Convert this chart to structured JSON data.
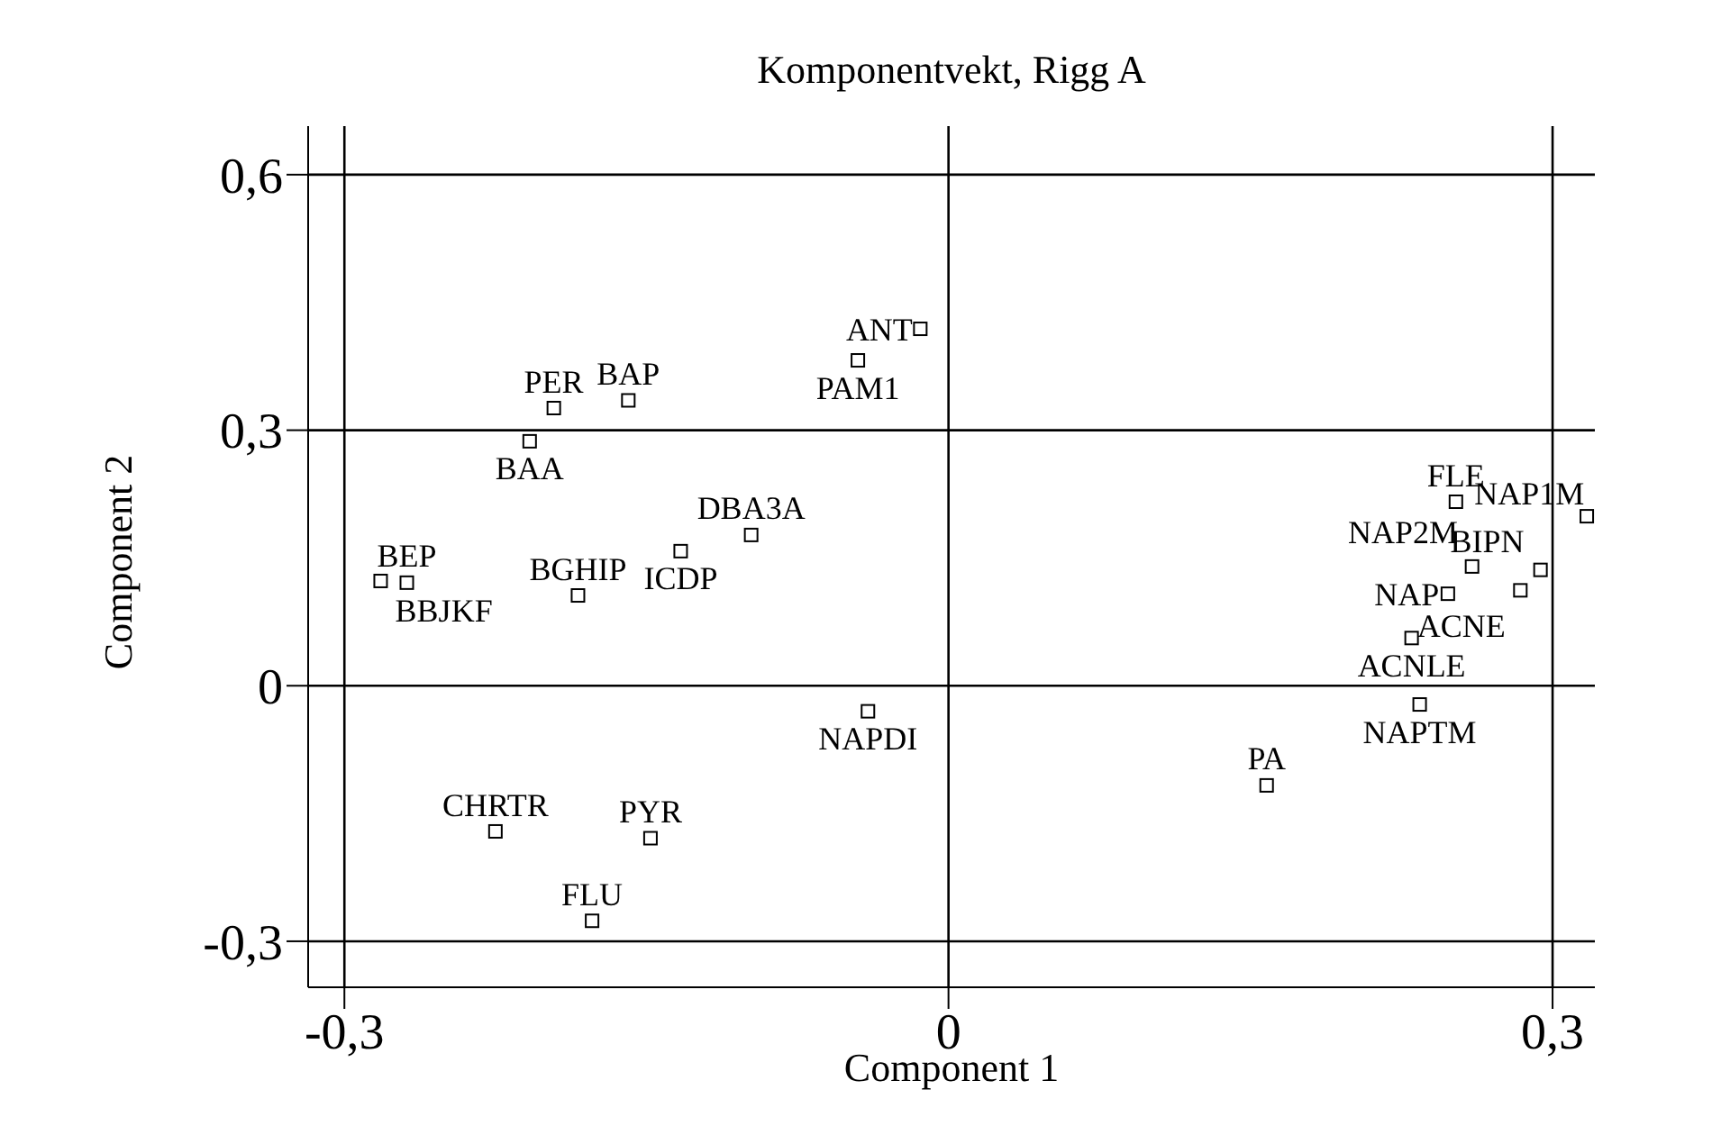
{
  "chart_data": {
    "type": "scatter",
    "title": "Komponentvekt, Rigg A",
    "xlabel": "Component 1",
    "ylabel": "Component 2",
    "x": [
      -0.014,
      -0.045,
      -0.159,
      -0.196,
      -0.208,
      -0.098,
      -0.133,
      -0.184,
      -0.269,
      -0.282,
      -0.04,
      -0.225,
      -0.148,
      -0.177,
      0.158,
      0.234,
      0.23,
      0.248,
      0.284,
      0.294,
      0.26,
      0.252,
      0.317
    ],
    "series": [
      {
        "color": "#000000",
        "values": [
          0.419,
          0.382,
          0.335,
          0.326,
          0.287,
          0.177,
          0.158,
          0.106,
          0.121,
          0.123,
          -0.03,
          -0.171,
          -0.179,
          -0.276,
          -0.117,
          -0.022,
          0.056,
          0.108,
          0.112,
          0.136,
          0.14,
          0.216,
          0.199
        ]
      }
    ],
    "annotations": [
      {
        "text": "ANT",
        "x": -0.014,
        "y": 0.419
      },
      {
        "text": "PAM1",
        "x": -0.045,
        "y": 0.382
      },
      {
        "text": "BAP",
        "x": -0.159,
        "y": 0.335
      },
      {
        "text": "PER",
        "x": -0.196,
        "y": 0.326
      },
      {
        "text": "BAA",
        "x": -0.208,
        "y": 0.287
      },
      {
        "text": "DBA3A",
        "x": -0.098,
        "y": 0.177
      },
      {
        "text": "ICDP",
        "x": -0.133,
        "y": 0.158
      },
      {
        "text": "BGHIP",
        "x": -0.184,
        "y": 0.106
      },
      {
        "text": "BEP",
        "x": -0.269,
        "y": 0.121
      },
      {
        "text": "BBJKF",
        "x": -0.282,
        "y": 0.123
      },
      {
        "text": "NAPDI",
        "x": -0.04,
        "y": -0.03
      },
      {
        "text": "CHRTR",
        "x": -0.225,
        "y": -0.171
      },
      {
        "text": "PYR",
        "x": -0.148,
        "y": -0.179
      },
      {
        "text": "FLU",
        "x": -0.177,
        "y": -0.276
      },
      {
        "text": "PA",
        "x": 0.158,
        "y": -0.117
      },
      {
        "text": "NAPTM",
        "x": 0.234,
        "y": -0.022
      },
      {
        "text": "ACNLE",
        "x": 0.23,
        "y": 0.056
      },
      {
        "text": "NAP",
        "x": 0.248,
        "y": 0.108
      },
      {
        "text": "ACNE",
        "x": 0.284,
        "y": 0.112
      },
      {
        "text": "BIPN",
        "x": 0.294,
        "y": 0.136
      },
      {
        "text": "NAP2M",
        "x": 0.26,
        "y": 0.14
      },
      {
        "text": "FLE",
        "x": 0.252,
        "y": 0.216
      },
      {
        "text": "NAP1M",
        "x": 0.317,
        "y": 0.199
      }
    ],
    "xlim": [
      -0.318,
      0.321
    ],
    "ylim": [
      -0.354,
      0.657
    ],
    "xticks": [
      {
        "value": -0.3,
        "label": "-0,3"
      },
      0,
      {
        "value": 0.3,
        "label": "0,3"
      }
    ],
    "yticks": [
      {
        "value": -0.3,
        "label": "-0,3"
      },
      0,
      {
        "value": 0.3,
        "label": "0,3"
      },
      {
        "value": 0.6,
        "label": "0,6"
      }
    ],
    "grid": true,
    "marker": "square",
    "legend": false
  }
}
